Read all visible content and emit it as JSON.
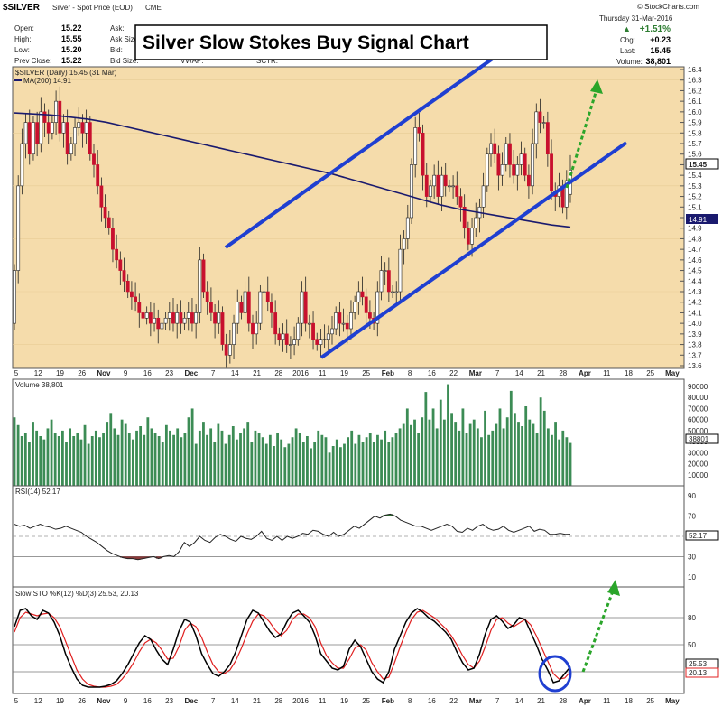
{
  "header": {
    "symbol": "$SILVER",
    "name": "Silver - Spot Price (EOD)",
    "exchange": "CME",
    "brand": "© StockCharts.com",
    "date": "Thursday  31-Mar-2016",
    "pct_change": "+1.51%",
    "open_label": "Open:",
    "open": "15.22",
    "high_label": "High:",
    "high": "15.55",
    "low_label": "Low:",
    "low": "15.20",
    "prev_label": "Prev Close:",
    "prev": "15.22",
    "ask_label": "Ask:",
    "ask_size_label": "Ask Size:",
    "bid_label": "Bid:",
    "bid_size_label": "Bid Size:",
    "vwap_label": "VWAP:",
    "sctr_label": "SCTR:",
    "chg_label": "Chg:",
    "chg": "+0.23",
    "last_label": "Last:",
    "last": "15.45",
    "volume_label": "Volume:",
    "volume": "38,801"
  },
  "annotation_title": "Silver Slow Stokes Buy Signal Chart",
  "colors": {
    "up": "#2e7d32",
    "down": "#c8102e",
    "panel_bg": "#f5dcab",
    "ma": "#1a1a6e",
    "channel": "#1f3fd1",
    "arrow": "#2aa52a",
    "rsi_line": "#222",
    "stoch_k": "#000",
    "stoch_d": "#e02020",
    "circle": "#1f3fd1",
    "volume": "#3c8c55"
  },
  "chart_data": [
    {
      "type": "candlestick",
      "title": "$SILVER (Daily) 15.45 (31 Mar)",
      "overlay": "MA(200) 14.91",
      "ylim": [
        13.6,
        16.4
      ],
      "yticks": [
        13.6,
        13.7,
        13.8,
        13.9,
        14.0,
        14.1,
        14.2,
        14.3,
        14.4,
        14.5,
        14.6,
        14.7,
        14.8,
        14.9,
        15.0,
        15.1,
        15.2,
        15.3,
        15.4,
        15.5,
        15.6,
        15.7,
        15.8,
        15.9,
        16.0,
        16.1,
        16.2,
        16.3,
        16.4
      ],
      "x_labels": [
        "5",
        "12",
        "19",
        "26",
        "Nov",
        "9",
        "16",
        "23",
        "Dec",
        "7",
        "14",
        "21",
        "28",
        "2016",
        "11",
        "19",
        "25",
        "Feb",
        "8",
        "16",
        "22",
        "Mar",
        "7",
        "14",
        "21",
        "28",
        "Apr",
        "11",
        "18",
        "25",
        "May"
      ],
      "last_price_tag": "15.45",
      "ma_price_tag": "14.91",
      "close": [
        14.5,
        15.3,
        15.7,
        15.9,
        15.6,
        15.9,
        15.7,
        16.0,
        15.9,
        15.8,
        15.9,
        16.1,
        15.8,
        15.9,
        15.6,
        15.7,
        15.85,
        15.9,
        15.8,
        15.9,
        15.6,
        15.5,
        15.3,
        15.1,
        15.0,
        14.9,
        14.7,
        14.6,
        14.5,
        14.4,
        14.3,
        14.25,
        14.2,
        14.1,
        14.05,
        14.1,
        14.0,
        14.05,
        13.95,
        14.0,
        14.05,
        14.1,
        14.0,
        14.1,
        14.0,
        14.05,
        14.1,
        14.0,
        14.1,
        14.6,
        14.3,
        14.2,
        14.1,
        14.0,
        14.1,
        13.8,
        13.7,
        13.8,
        14.0,
        14.2,
        14.1,
        14.3,
        14.0,
        13.9,
        14.0,
        14.3,
        14.3,
        14.2,
        14.1,
        13.9,
        13.85,
        13.9,
        13.8,
        13.8,
        13.85,
        14.0,
        14.3,
        14.0,
        14.0,
        13.85,
        13.8,
        13.85,
        13.85,
        13.9,
        13.95,
        14.1,
        14.0,
        14.0,
        13.95,
        14.1,
        14.2,
        14.3,
        14.25,
        14.1,
        14.05,
        14.0,
        14.3,
        14.5,
        14.5,
        14.3,
        14.3,
        14.3,
        14.7,
        14.8,
        15.0,
        15.5,
        15.85,
        15.8,
        15.4,
        15.2,
        15.3,
        15.4,
        15.2,
        15.4,
        15.3,
        15.3,
        15.3,
        15.2,
        15.1,
        14.9,
        14.75,
        14.9,
        15.0,
        15.1,
        15.3,
        15.6,
        15.7,
        15.6,
        15.4,
        15.5,
        15.7,
        15.5,
        15.4,
        15.5,
        15.6,
        15.4,
        15.3,
        15.7,
        16.0,
        15.9,
        15.9,
        15.6,
        15.25,
        15.2,
        15.3,
        15.1,
        15.35,
        15.45
      ],
      "open": [
        14.0,
        14.5,
        15.3,
        15.7,
        15.9,
        15.6,
        15.9,
        15.7,
        16.0,
        15.9,
        15.8,
        15.9,
        16.1,
        15.8,
        15.9,
        15.6,
        15.7,
        15.85,
        15.9,
        15.8,
        15.9,
        15.6,
        15.5,
        15.3,
        15.1,
        15.0,
        14.9,
        14.7,
        14.6,
        14.5,
        14.4,
        14.3,
        14.25,
        14.2,
        14.1,
        14.05,
        14.1,
        14.0,
        14.05,
        13.95,
        14.0,
        14.05,
        14.1,
        14.0,
        14.1,
        14.0,
        14.05,
        14.1,
        14.0,
        14.1,
        14.6,
        14.3,
        14.2,
        14.1,
        14.0,
        14.1,
        13.8,
        13.7,
        13.8,
        14.0,
        14.2,
        14.1,
        14.3,
        14.0,
        13.9,
        14.0,
        14.3,
        14.3,
        14.2,
        14.1,
        13.9,
        13.85,
        13.9,
        13.8,
        13.8,
        13.85,
        14.0,
        14.3,
        14.0,
        14.0,
        13.85,
        13.8,
        13.85,
        13.85,
        13.9,
        13.95,
        14.1,
        14.0,
        14.0,
        13.95,
        14.1,
        14.2,
        14.3,
        14.25,
        14.1,
        14.05,
        14.0,
        14.3,
        14.5,
        14.5,
        14.3,
        14.3,
        14.3,
        14.7,
        14.8,
        15.0,
        15.5,
        15.85,
        15.8,
        15.4,
        15.2,
        15.3,
        15.4,
        15.2,
        15.4,
        15.3,
        15.3,
        15.3,
        15.2,
        15.1,
        14.9,
        14.75,
        14.9,
        15.0,
        15.1,
        15.3,
        15.6,
        15.7,
        15.6,
        15.4,
        15.5,
        15.7,
        15.5,
        15.4,
        15.5,
        15.6,
        15.4,
        15.3,
        15.7,
        16.0,
        15.9,
        15.9,
        15.6,
        15.25,
        15.2,
        15.3,
        15.1,
        15.22
      ],
      "ma200": [
        15.99,
        15.98,
        15.97,
        15.95,
        15.93,
        15.9,
        15.86,
        15.82,
        15.78,
        15.74,
        15.7,
        15.66,
        15.62,
        15.58,
        15.54,
        15.5,
        15.46,
        15.42,
        15.37,
        15.32,
        15.27,
        15.22,
        15.17,
        15.12,
        15.08,
        15.05,
        15.02,
        14.99,
        14.96,
        14.93,
        14.91
      ]
    },
    {
      "type": "bar",
      "title": "Volume 38,801",
      "ylim": [
        0,
        90000
      ],
      "yticks": [
        10000,
        20000,
        30000,
        40000,
        50000,
        60000,
        70000,
        80000,
        90000
      ],
      "last_tag": "38801",
      "values": [
        62000,
        55000,
        45000,
        48000,
        40000,
        58000,
        50000,
        45000,
        42000,
        52000,
        60000,
        48000,
        45000,
        50000,
        40000,
        52000,
        45000,
        48000,
        42000,
        55000,
        38000,
        45000,
        50000,
        44000,
        48000,
        58000,
        66000,
        52000,
        46000,
        60000,
        56000,
        48000,
        42000,
        50000,
        54000,
        46000,
        62000,
        52000,
        48000,
        45000,
        40000,
        55000,
        50000,
        46000,
        52000,
        44000,
        48000,
        62000,
        70000,
        38000,
        50000,
        58000,
        46000,
        52000,
        40000,
        56000,
        50000,
        38000,
        46000,
        54000,
        42000,
        48000,
        52000,
        58000,
        40000,
        50000,
        48000,
        44000,
        38000,
        46000,
        36000,
        48000,
        42000,
        35000,
        38000,
        44000,
        52000,
        48000,
        40000,
        45000,
        34000,
        40000,
        50000,
        46000,
        44000,
        30000,
        36000,
        42000,
        35000,
        38000,
        44000,
        50000,
        38000,
        46000,
        40000,
        44000,
        48000,
        40000,
        46000,
        42000,
        50000,
        40000,
        44000,
        48000,
        52000,
        56000,
        70000,
        55000,
        60000,
        48000,
        62000,
        85000,
        60000,
        70000,
        52000,
        78000,
        60000,
        92000,
        66000,
        58000,
        50000,
        70000,
        48000,
        56000,
        60000,
        52000,
        44000,
        68000,
        46000,
        50000,
        56000,
        70000,
        52000,
        62000,
        86000,
        66000,
        58000,
        54000,
        72000,
        60000,
        56000,
        48000,
        80000,
        68000,
        52000,
        46000,
        58000,
        42000,
        50000,
        44000,
        38801
      ]
    },
    {
      "type": "line",
      "title": "RSI(14) 52.17",
      "ylim": [
        0,
        100
      ],
      "yticks": [
        10,
        30,
        50,
        70,
        90
      ],
      "last_tag": "52.17",
      "values": [
        62,
        60,
        61,
        58,
        60,
        62,
        60,
        59,
        57,
        58,
        60,
        58,
        56,
        54,
        50,
        47,
        44,
        40,
        36,
        33,
        31,
        29,
        28,
        28,
        27,
        28,
        29,
        30,
        28,
        30,
        31,
        30,
        35,
        44,
        40,
        44,
        50,
        46,
        44,
        49,
        52,
        50,
        47,
        45,
        50,
        48,
        47,
        50,
        55,
        48,
        46,
        50,
        46,
        50,
        48,
        50,
        53,
        52,
        56,
        55,
        52,
        50,
        54,
        50,
        52,
        56,
        60,
        58,
        62,
        66,
        70,
        68,
        71,
        72,
        70,
        66,
        64,
        62,
        60,
        60,
        58,
        56,
        58,
        60,
        62,
        60,
        55,
        54,
        58,
        56,
        60,
        62,
        58,
        56,
        57,
        60,
        56,
        54,
        56,
        58,
        60,
        55,
        57,
        56,
        52,
        52,
        53,
        52,
        52.17
      ]
    },
    {
      "type": "line",
      "title": "Slow STO %K(12) %D(3) 25.53, 20.13",
      "ylim": [
        0,
        100
      ],
      "yticks": [
        20,
        50,
        80
      ],
      "k_tag": "25.53",
      "d_tag": "20.13",
      "k": [
        70,
        88,
        90,
        82,
        78,
        88,
        85,
        75,
        60,
        40,
        25,
        12,
        5,
        3,
        3,
        3,
        4,
        6,
        10,
        18,
        28,
        40,
        52,
        60,
        56,
        44,
        34,
        28,
        45,
        65,
        78,
        75,
        60,
        40,
        28,
        18,
        15,
        20,
        28,
        42,
        60,
        78,
        88,
        85,
        75,
        65,
        58,
        62,
        75,
        85,
        88,
        82,
        75,
        60,
        40,
        32,
        24,
        22,
        26,
        45,
        55,
        48,
        34,
        20,
        12,
        8,
        20,
        45,
        60,
        75,
        85,
        90,
        86,
        80,
        76,
        70,
        64,
        56,
        42,
        30,
        22,
        24,
        40,
        62,
        78,
        82,
        76,
        68,
        72,
        80,
        78,
        64,
        50,
        34,
        22,
        8,
        10,
        18,
        25.53
      ],
      "d": [
        64,
        80,
        86,
        84,
        82,
        84,
        85,
        80,
        70,
        54,
        38,
        22,
        12,
        6,
        4,
        3,
        3,
        4,
        6,
        12,
        20,
        30,
        42,
        52,
        56,
        52,
        44,
        34,
        35,
        48,
        66,
        74,
        70,
        58,
        42,
        28,
        20,
        18,
        22,
        32,
        46,
        62,
        76,
        84,
        82,
        75,
        66,
        60,
        66,
        78,
        84,
        84,
        80,
        70,
        52,
        38,
        30,
        24,
        24,
        34,
        46,
        50,
        44,
        30,
        20,
        12,
        14,
        30,
        48,
        64,
        78,
        86,
        88,
        84,
        80,
        74,
        68,
        60,
        50,
        38,
        28,
        24,
        32,
        48,
        66,
        78,
        80,
        74,
        70,
        74,
        78,
        72,
        60,
        46,
        32,
        18,
        12,
        13,
        20.13
      ]
    }
  ]
}
